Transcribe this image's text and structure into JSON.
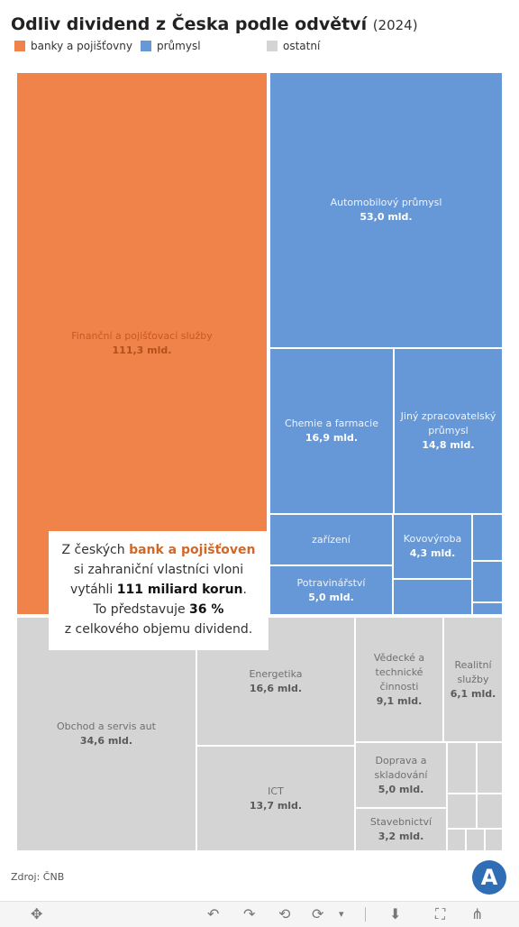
{
  "header": {
    "title": "Odliv dividend z Česka podle odvětví",
    "year": "(2024)"
  },
  "legend": [
    {
      "label": "banky a pojišťovny",
      "color": "#f0834a"
    },
    {
      "label": "průmysl",
      "color": "#6697d6"
    },
    {
      "label": "ostatní",
      "color": "#d4d4d4"
    }
  ],
  "callout": {
    "line1_pre": "Z českých ",
    "line1_hl": "bank a pojišťoven",
    "line2": "si zahraniční vlastníci vloni",
    "line3_pre": "vytáhli ",
    "line3_b": "111 miliard korun",
    "line3_post": ".",
    "line4_pre": "To představuje ",
    "line4_b": "36 %",
    "line5": "z celkového objemu dividend."
  },
  "source": "Zdroj: ČNB",
  "logo": "A",
  "chart_data": {
    "type": "treemap",
    "unit": "mld.",
    "colors": {
      "banky a pojišťovny": "#f0834a",
      "průmysl": "#6697d6",
      "ostatní": "#d4d4d4"
    },
    "items": [
      {
        "category": "banky a pojišťovny",
        "name": "Finanční a pojišťovací služby",
        "value": 111.3,
        "label": "111,3 mld."
      },
      {
        "category": "průmysl",
        "name": "Automobilový průmysl",
        "value": 53.0,
        "label": "53,0 mld."
      },
      {
        "category": "průmysl",
        "name": "Chemie a farmacie",
        "value": 16.9,
        "label": "16,9 mld."
      },
      {
        "category": "průmysl",
        "name": "Jiný zpracovatelský průmysl",
        "value": 14.8,
        "label": "14,8 mld."
      },
      {
        "category": "průmysl",
        "name": "zařízení",
        "value": null,
        "label": ""
      },
      {
        "category": "průmysl",
        "name": "Kovovýroba",
        "value": 4.3,
        "label": "4,3 mld."
      },
      {
        "category": "průmysl",
        "name": "Potravinářství",
        "value": 5.0,
        "label": "5,0 mld."
      },
      {
        "category": "průmysl",
        "name": "",
        "value": null,
        "label": ""
      },
      {
        "category": "průmysl",
        "name": "",
        "value": null,
        "label": ""
      },
      {
        "category": "průmysl",
        "name": "",
        "value": null,
        "label": ""
      },
      {
        "category": "průmysl",
        "name": "",
        "value": null,
        "label": ""
      },
      {
        "category": "ostatní",
        "name": "Obchod a servis aut",
        "value": 34.6,
        "label": "34,6 mld."
      },
      {
        "category": "ostatní",
        "name": "Energetika",
        "value": 16.6,
        "label": "16,6 mld."
      },
      {
        "category": "ostatní",
        "name": "ICT",
        "value": 13.7,
        "label": "13,7 mld."
      },
      {
        "category": "ostatní",
        "name": "Vědecké a technické činnosti",
        "value": 9.1,
        "label": "9,1 mld."
      },
      {
        "category": "ostatní",
        "name": "Realitní služby",
        "value": 6.1,
        "label": "6,1 mld."
      },
      {
        "category": "ostatní",
        "name": "Doprava a skladování",
        "value": 5.0,
        "label": "5,0 mld."
      },
      {
        "category": "ostatní",
        "name": "Stavebnictví",
        "value": 3.2,
        "label": "3,2 mld."
      },
      {
        "category": "ostatní",
        "name": "",
        "value": null,
        "label": ""
      },
      {
        "category": "ostatní",
        "name": "",
        "value": null,
        "label": ""
      },
      {
        "category": "ostatní",
        "name": "",
        "value": null,
        "label": ""
      },
      {
        "category": "ostatní",
        "name": "",
        "value": null,
        "label": ""
      },
      {
        "category": "ostatní",
        "name": "",
        "value": null,
        "label": ""
      },
      {
        "category": "ostatní",
        "name": "",
        "value": null,
        "label": ""
      },
      {
        "category": "ostatní",
        "name": "",
        "value": null,
        "label": ""
      }
    ]
  },
  "toolbar": {
    "items": [
      {
        "icon": "move-icon",
        "glyph": "✥"
      },
      {
        "icon": "undo-icon",
        "glyph": "↶"
      },
      {
        "icon": "redo-icon",
        "glyph": "↷"
      },
      {
        "icon": "revert-icon",
        "glyph": "⟲"
      },
      {
        "icon": "refresh-icon",
        "glyph": "⟳"
      },
      {
        "icon": "dropdown-arrow-icon",
        "glyph": "▾"
      },
      {
        "icon": "download-icon",
        "glyph": "⬇"
      },
      {
        "icon": "fullscreen-icon",
        "glyph": "⛶"
      },
      {
        "icon": "share-icon",
        "glyph": "⋔"
      }
    ]
  }
}
